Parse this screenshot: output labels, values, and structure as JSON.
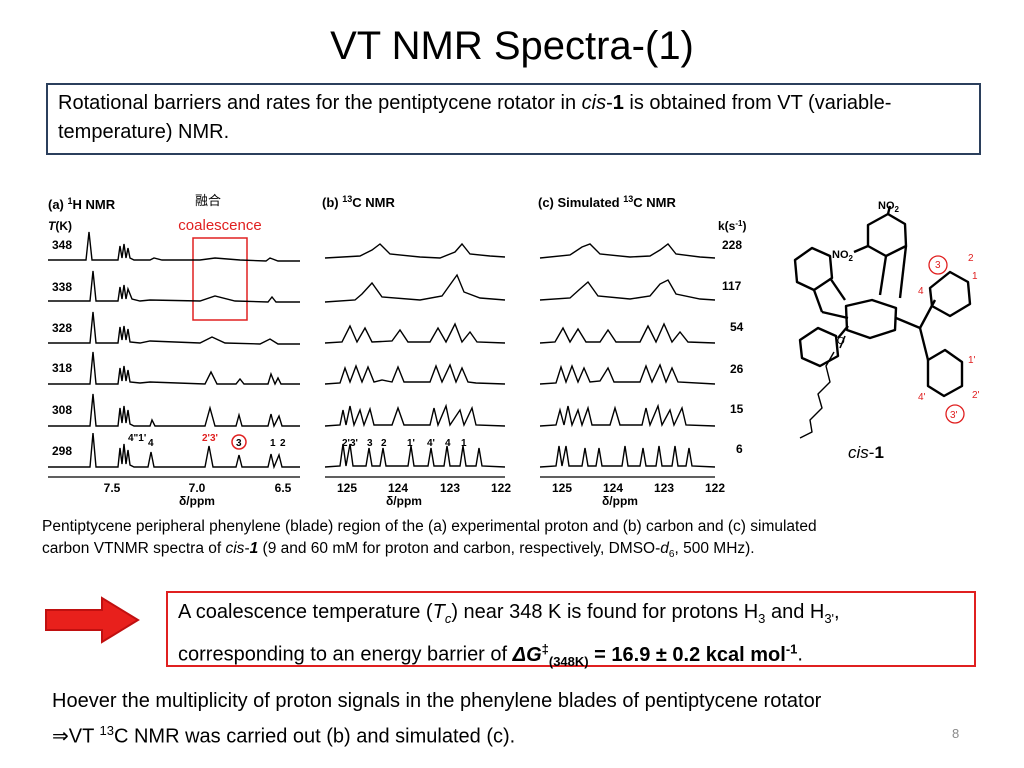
{
  "slide": {
    "title": "VT NMR Spectra-(1)",
    "page_number": "8"
  },
  "intro": {
    "text_1": "Rotational barriers and rates for the pentiptycene rotator in ",
    "cis": "cis",
    "dash": "-",
    "one": "1",
    "text_2": " is obtained from VT (variable-temperature) NMR."
  },
  "figure": {
    "panel_a": {
      "label_prefix": "(a) ",
      "label_sup": "1",
      "label_suffix": "H NMR",
      "t_col_t": "T",
      "t_col_unit": "(K)",
      "temps": [
        "348",
        "338",
        "328",
        "318",
        "308",
        "298"
      ],
      "axis_ticks": [
        "7.5",
        "7.0",
        "6.5"
      ],
      "axis_label": "δ/ppm",
      "peak_labels": [
        "4\"1'",
        "4",
        "2'3'",
        "3",
        "1",
        "2"
      ]
    },
    "coalescence_cjk": "融合",
    "coalescence_label": "coalescence",
    "panel_b": {
      "label_prefix": "(b) ",
      "label_sup": "13",
      "label_suffix": "C NMR",
      "axis_ticks": [
        "125",
        "124",
        "123",
        "122"
      ],
      "axis_label": "δ/ppm",
      "peak_labels": [
        "2'3'",
        "3",
        "2",
        "1'",
        "4'",
        "4",
        "1"
      ]
    },
    "panel_c": {
      "label_prefix": "(c) Simulated ",
      "label_sup": "13",
      "label_suffix": "C NMR",
      "k_col": "k(s",
      "k_col_sup": "-1",
      "k_col_end": ")",
      "rates": [
        "228",
        "117",
        "54",
        "26",
        "15",
        "6"
      ],
      "axis_ticks": [
        "125",
        "124",
        "123",
        "122"
      ],
      "axis_label": "δ/ppm"
    },
    "structure": {
      "no2_top": "NO",
      "no2_top_sub": "2",
      "no2_mid": "NO",
      "no2_mid_sub": "2",
      "atom_labels": [
        "3",
        "2",
        "1",
        "4",
        "1'",
        "2'",
        "4'",
        "3'"
      ],
      "compound_italic": "cis",
      "compound_dash": "-",
      "compound_bold": "1"
    }
  },
  "caption": {
    "line_1": "Pentiptycene peripheral phenylene (blade) region of the (a) experimental proton and (b) carbon and (c) simulated",
    "line_2a": "carbon VTNMR spectra of ",
    "cis": "cis",
    "dash": "-",
    "one": "1",
    "line_2b": " (9 and 60 mM for proton and carbon, respectively, DMSO-",
    "d": "d",
    "d_sub": "6",
    "line_2c": ", 500 MHz)."
  },
  "conclusion": {
    "text_1": "A coalescence temperature (",
    "tc": "T",
    "tc_sub": "c",
    "text_2": ") near 348 K is found for protons H",
    "h_sub_1": "3",
    "text_3": " and H",
    "h_sub_2": "3'",
    "text_4": ",",
    "text_5": "corresponding to an energy barrier of ",
    "dg": "ΔG",
    "dg_sup": "‡",
    "dg_sub": "(348K)",
    "text_6": " = 16.9 ± 0.2 kcal mol",
    "mol_sup": "-1",
    "text_7": "."
  },
  "bottom": {
    "line_1": "Hoever the multiplicity of proton signals in the phenylene blades of pentiptycene rotator",
    "line_2a": "⇒VT ",
    "sup_13": "13",
    "line_2b": "C NMR was carried out (b) and simulated (c)."
  },
  "colors": {
    "accent_red": "#e02020",
    "box_border_navy": "#2b3f5c",
    "arrow_red": "#e8201c"
  }
}
